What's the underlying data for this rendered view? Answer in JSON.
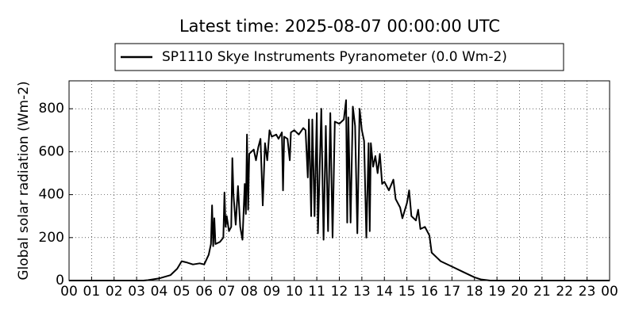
{
  "chart_data": {
    "type": "line",
    "title": "Latest time: 2025-08-07 00:00:00 UTC",
    "y_label": "Global solar radiation (Wm-2)",
    "legend": "top",
    "grid": true,
    "xlim": [
      0,
      24
    ],
    "ylim": [
      0,
      930
    ],
    "xticks": [
      {
        "value": 0,
        "label": "00"
      },
      {
        "value": 1,
        "label": "01"
      },
      {
        "value": 2,
        "label": "02"
      },
      {
        "value": 3,
        "label": "03"
      },
      {
        "value": 4,
        "label": "04"
      },
      {
        "value": 5,
        "label": "05"
      },
      {
        "value": 6,
        "label": "06"
      },
      {
        "value": 7,
        "label": "07"
      },
      {
        "value": 8,
        "label": "08"
      },
      {
        "value": 9,
        "label": "09"
      },
      {
        "value": 10,
        "label": "10"
      },
      {
        "value": 11,
        "label": "11"
      },
      {
        "value": 12,
        "label": "12"
      },
      {
        "value": 13,
        "label": "13"
      },
      {
        "value": 14,
        "label": "14"
      },
      {
        "value": 15,
        "label": "15"
      },
      {
        "value": 16,
        "label": "16"
      },
      {
        "value": 17,
        "label": "17"
      },
      {
        "value": 18,
        "label": "18"
      },
      {
        "value": 19,
        "label": "19"
      },
      {
        "value": 20,
        "label": "20"
      },
      {
        "value": 21,
        "label": "21"
      },
      {
        "value": 22,
        "label": "22"
      },
      {
        "value": 23,
        "label": "23"
      },
      {
        "value": 24,
        "label": "00"
      }
    ],
    "yticks": [
      0,
      200,
      400,
      600,
      800
    ],
    "x": [
      0,
      3,
      3.3,
      3.5,
      4,
      4.5,
      4.8,
      5,
      5.2,
      5.5,
      5.8,
      6,
      6.2,
      6.3,
      6.35,
      6.4,
      6.45,
      6.5,
      6.7,
      6.85,
      6.9,
      6.95,
      7,
      7.1,
      7.2,
      7.25,
      7.3,
      7.4,
      7.5,
      7.6,
      7.7,
      7.8,
      7.85,
      7.9,
      7.95,
      8,
      8.2,
      8.3,
      8.4,
      8.5,
      8.6,
      8.7,
      8.8,
      8.9,
      9,
      9.2,
      9.3,
      9.45,
      9.5,
      9.55,
      9.7,
      9.8,
      9.85,
      10,
      10.2,
      10.4,
      10.5,
      10.6,
      10.65,
      10.75,
      10.8,
      10.9,
      11,
      11.05,
      11.2,
      11.3,
      11.4,
      11.5,
      11.6,
      11.7,
      11.8,
      12,
      12.2,
      12.3,
      12.35,
      12.4,
      12.5,
      12.6,
      12.7,
      12.8,
      12.9,
      13,
      13.1,
      13.2,
      13.3,
      13.35,
      13.4,
      13.5,
      13.6,
      13.7,
      13.8,
      13.9,
      14,
      14.2,
      14.4,
      14.5,
      14.7,
      14.8,
      15,
      15.1,
      15.2,
      15.4,
      15.5,
      15.6,
      15.8,
      16,
      16.1,
      16.3,
      16.5,
      17,
      17.5,
      18,
      18.3,
      18.7,
      24
    ],
    "series": [
      {
        "name": "SP1110 Skye Instruments Pyranometer (0.0 Wm-2)",
        "color": "#000000",
        "values": [
          0,
          0,
          0,
          2,
          10,
          25,
          55,
          90,
          85,
          75,
          80,
          75,
          120,
          170,
          350,
          160,
          290,
          170,
          180,
          200,
          410,
          250,
          300,
          230,
          250,
          570,
          400,
          260,
          440,
          250,
          190,
          450,
          310,
          680,
          330,
          590,
          610,
          560,
          620,
          660,
          350,
          640,
          560,
          700,
          670,
          680,
          660,
          690,
          420,
          670,
          660,
          560,
          690,
          700,
          680,
          710,
          700,
          480,
          750,
          300,
          750,
          300,
          780,
          220,
          800,
          190,
          720,
          230,
          780,
          200,
          740,
          730,
          750,
          840,
          270,
          760,
          270,
          810,
          720,
          220,
          800,
          700,
          650,
          200,
          640,
          230,
          640,
          530,
          580,
          500,
          590,
          450,
          460,
          420,
          470,
          380,
          340,
          290,
          360,
          420,
          300,
          280,
          330,
          240,
          250,
          210,
          130,
          110,
          90,
          65,
          40,
          15,
          5,
          0,
          0
        ]
      }
    ]
  }
}
